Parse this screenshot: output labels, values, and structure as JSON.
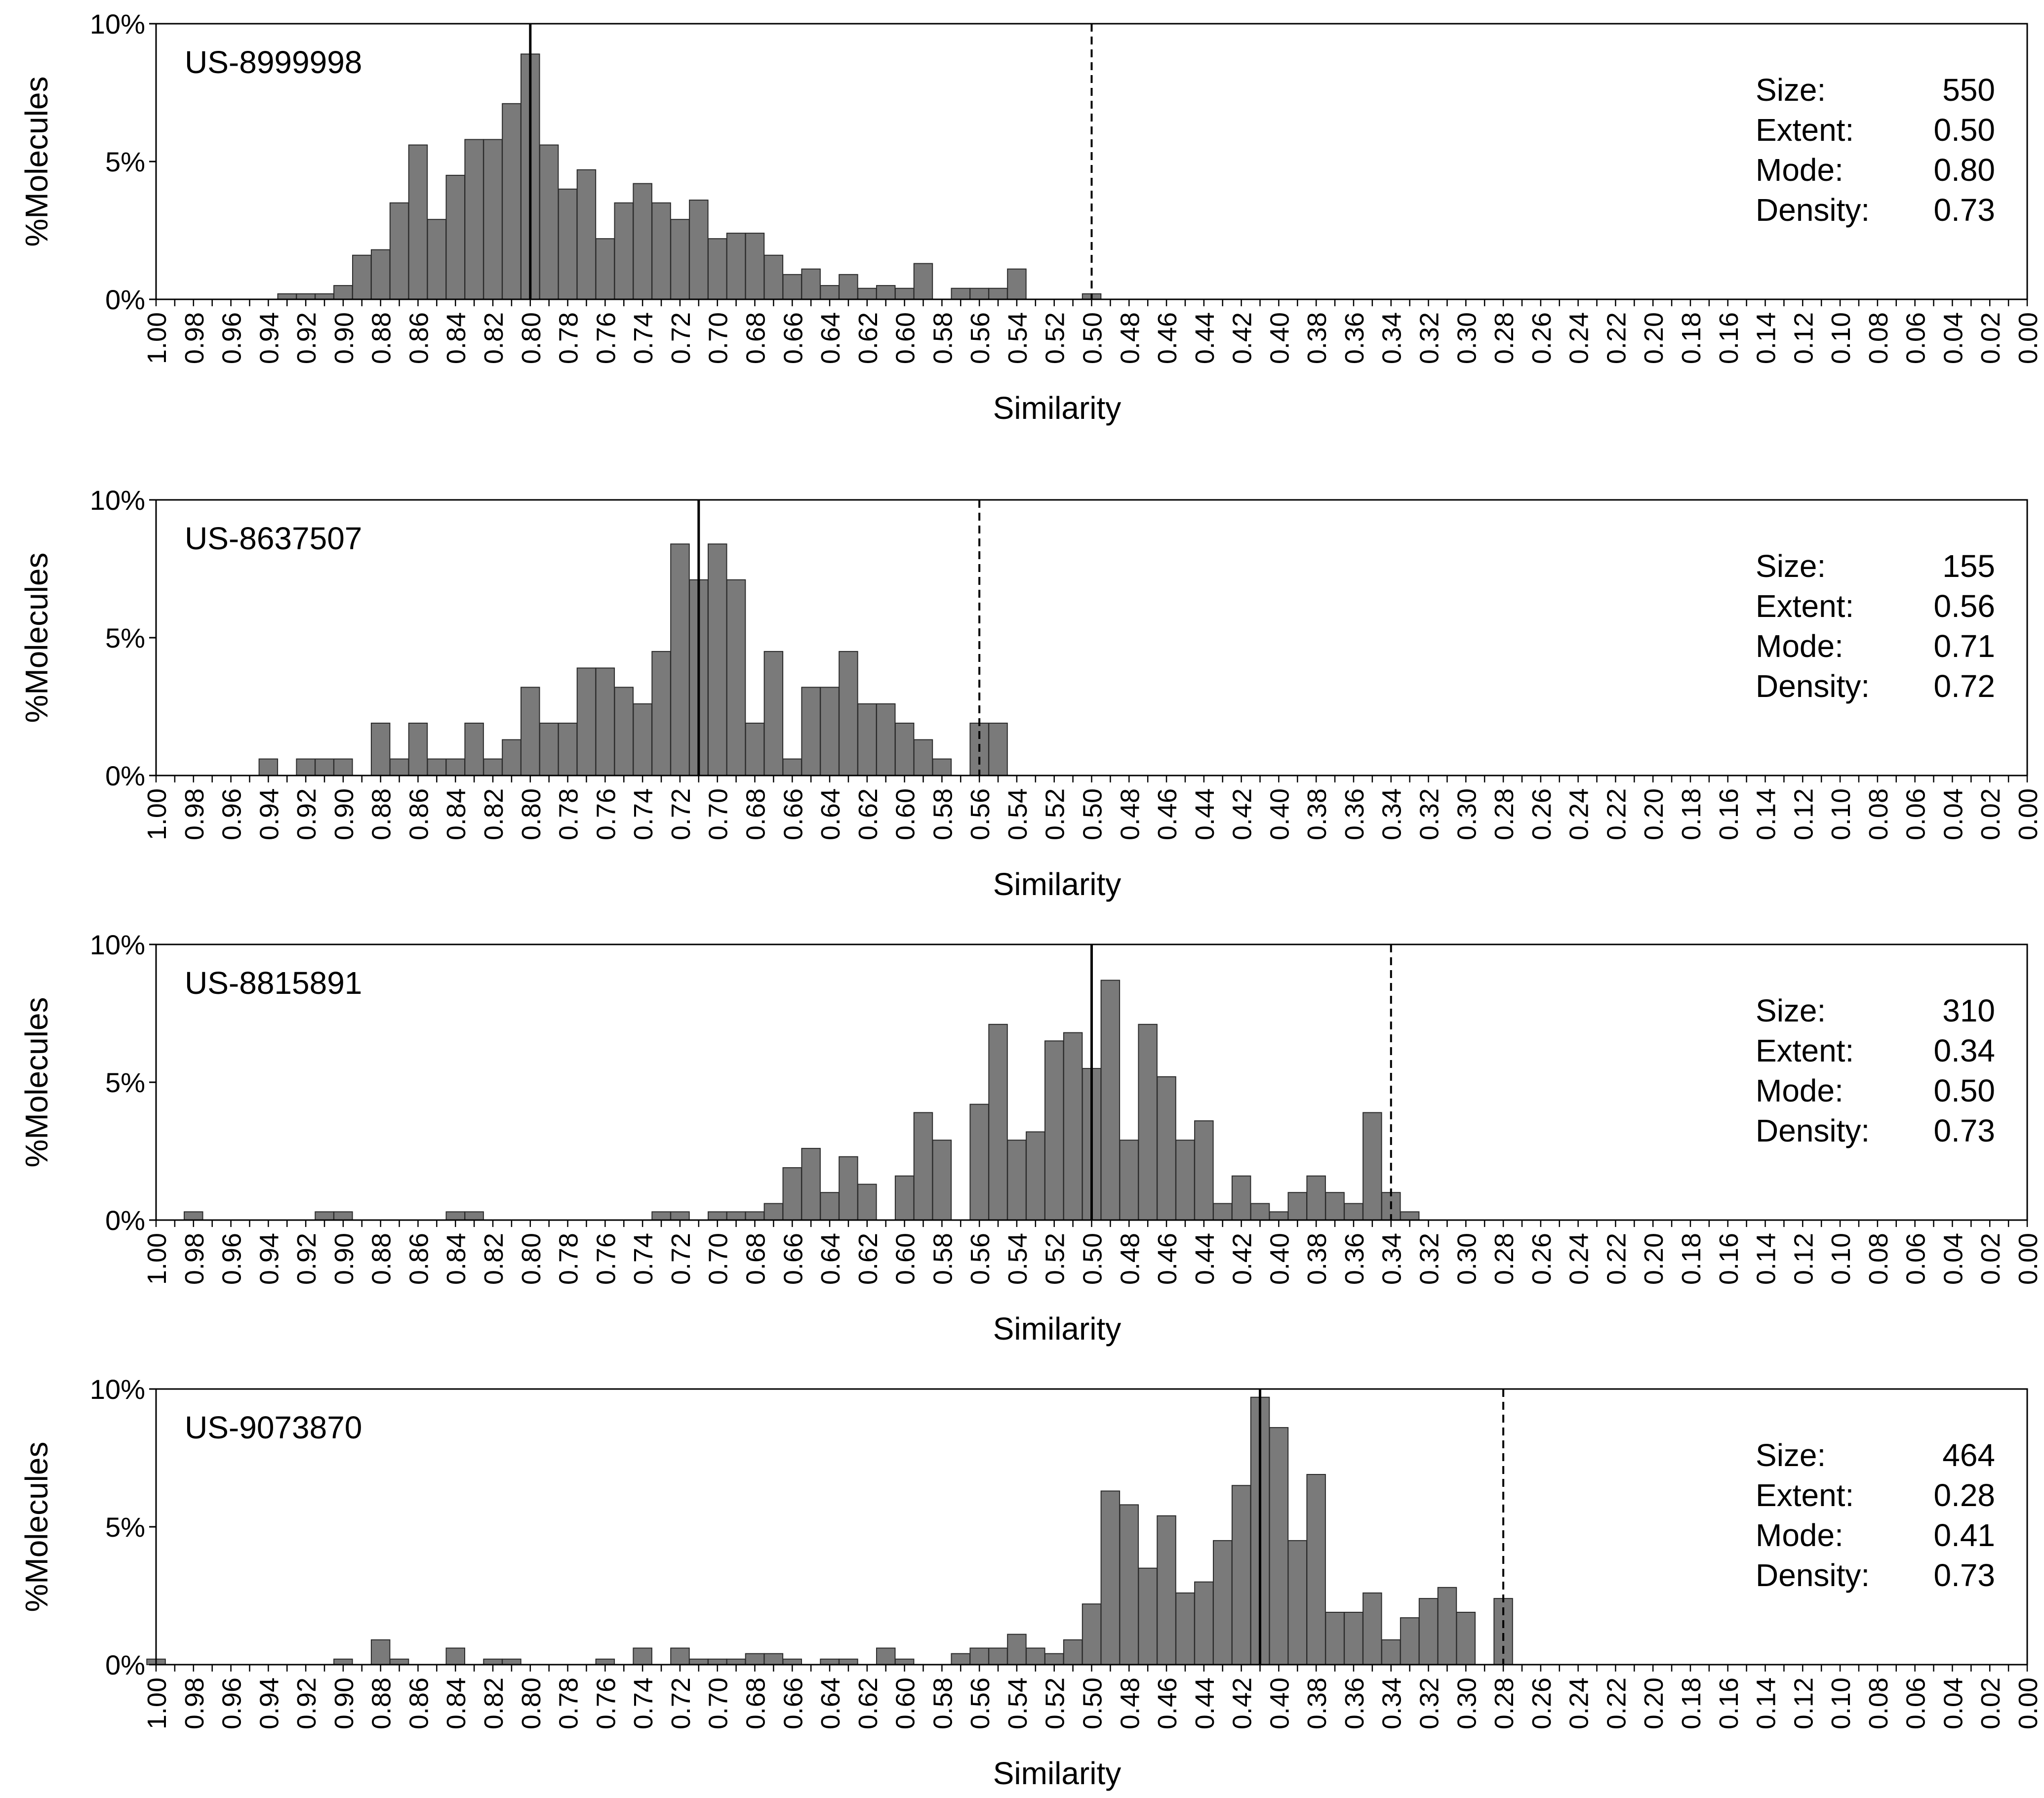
{
  "chart_data": [
    {
      "type": "bar",
      "label": "US-8999998",
      "xlabel": "Similarity",
      "ylabel": "%Molecules",
      "ylim": [
        0,
        10
      ],
      "yticks": [
        "0%",
        "5%",
        "10%"
      ],
      "xlim": [
        1.0,
        0.0
      ],
      "bin_width": 0.01,
      "mode_line": 0.8,
      "extent_line": 0.5,
      "stats": [
        {
          "label": "Size:",
          "value": "550"
        },
        {
          "label": "Extent:",
          "value": "0.50"
        },
        {
          "label": "Mode:",
          "value": "0.80"
        },
        {
          "label": "Density:",
          "value": "0.73"
        }
      ],
      "bins": [
        {
          "x": 0.93,
          "y": 0.2
        },
        {
          "x": 0.92,
          "y": 0.2
        },
        {
          "x": 0.91,
          "y": 0.2
        },
        {
          "x": 0.9,
          "y": 0.5
        },
        {
          "x": 0.89,
          "y": 1.6
        },
        {
          "x": 0.88,
          "y": 1.8
        },
        {
          "x": 0.87,
          "y": 3.5
        },
        {
          "x": 0.86,
          "y": 5.6
        },
        {
          "x": 0.85,
          "y": 2.9
        },
        {
          "x": 0.84,
          "y": 4.5
        },
        {
          "x": 0.83,
          "y": 5.8
        },
        {
          "x": 0.82,
          "y": 5.8
        },
        {
          "x": 0.81,
          "y": 7.1
        },
        {
          "x": 0.8,
          "y": 8.9
        },
        {
          "x": 0.79,
          "y": 5.6
        },
        {
          "x": 0.78,
          "y": 4.0
        },
        {
          "x": 0.77,
          "y": 4.7
        },
        {
          "x": 0.76,
          "y": 2.2
        },
        {
          "x": 0.75,
          "y": 3.5
        },
        {
          "x": 0.74,
          "y": 4.2
        },
        {
          "x": 0.73,
          "y": 3.5
        },
        {
          "x": 0.72,
          "y": 2.9
        },
        {
          "x": 0.71,
          "y": 3.6
        },
        {
          "x": 0.7,
          "y": 2.2
        },
        {
          "x": 0.69,
          "y": 2.4
        },
        {
          "x": 0.68,
          "y": 2.4
        },
        {
          "x": 0.67,
          "y": 1.6
        },
        {
          "x": 0.66,
          "y": 0.9
        },
        {
          "x": 0.65,
          "y": 1.1
        },
        {
          "x": 0.64,
          "y": 0.5
        },
        {
          "x": 0.63,
          "y": 0.9
        },
        {
          "x": 0.62,
          "y": 0.4
        },
        {
          "x": 0.61,
          "y": 0.5
        },
        {
          "x": 0.6,
          "y": 0.4
        },
        {
          "x": 0.59,
          "y": 1.3
        },
        {
          "x": 0.57,
          "y": 0.4
        },
        {
          "x": 0.56,
          "y": 0.4
        },
        {
          "x": 0.55,
          "y": 0.4
        },
        {
          "x": 0.54,
          "y": 1.1
        },
        {
          "x": 0.5,
          "y": 0.2
        }
      ]
    },
    {
      "type": "bar",
      "label": "US-8637507",
      "xlabel": "Similarity",
      "ylabel": "%Molecules",
      "ylim": [
        0,
        10
      ],
      "yticks": [
        "0%",
        "5%",
        "10%"
      ],
      "xlim": [
        1.0,
        0.0
      ],
      "bin_width": 0.01,
      "mode_line": 0.71,
      "extent_line": 0.56,
      "stats": [
        {
          "label": "Size:",
          "value": "155"
        },
        {
          "label": "Extent:",
          "value": "0.56"
        },
        {
          "label": "Mode:",
          "value": "0.71"
        },
        {
          "label": "Density:",
          "value": "0.72"
        }
      ],
      "bins": [
        {
          "x": 0.94,
          "y": 0.6
        },
        {
          "x": 0.92,
          "y": 0.6
        },
        {
          "x": 0.91,
          "y": 0.6
        },
        {
          "x": 0.9,
          "y": 0.6
        },
        {
          "x": 0.88,
          "y": 1.9
        },
        {
          "x": 0.87,
          "y": 0.6
        },
        {
          "x": 0.86,
          "y": 1.9
        },
        {
          "x": 0.85,
          "y": 0.6
        },
        {
          "x": 0.84,
          "y": 0.6
        },
        {
          "x": 0.83,
          "y": 1.9
        },
        {
          "x": 0.82,
          "y": 0.6
        },
        {
          "x": 0.81,
          "y": 1.3
        },
        {
          "x": 0.8,
          "y": 3.2
        },
        {
          "x": 0.79,
          "y": 1.9
        },
        {
          "x": 0.78,
          "y": 1.9
        },
        {
          "x": 0.77,
          "y": 3.9
        },
        {
          "x": 0.76,
          "y": 3.9
        },
        {
          "x": 0.75,
          "y": 3.2
        },
        {
          "x": 0.74,
          "y": 2.6
        },
        {
          "x": 0.73,
          "y": 4.5
        },
        {
          "x": 0.72,
          "y": 8.4
        },
        {
          "x": 0.71,
          "y": 7.1
        },
        {
          "x": 0.7,
          "y": 8.4
        },
        {
          "x": 0.69,
          "y": 7.1
        },
        {
          "x": 0.68,
          "y": 1.9
        },
        {
          "x": 0.67,
          "y": 4.5
        },
        {
          "x": 0.66,
          "y": 0.6
        },
        {
          "x": 0.65,
          "y": 3.2
        },
        {
          "x": 0.64,
          "y": 3.2
        },
        {
          "x": 0.63,
          "y": 4.5
        },
        {
          "x": 0.62,
          "y": 2.6
        },
        {
          "x": 0.61,
          "y": 2.6
        },
        {
          "x": 0.6,
          "y": 1.9
        },
        {
          "x": 0.59,
          "y": 1.3
        },
        {
          "x": 0.58,
          "y": 0.6
        },
        {
          "x": 0.56,
          "y": 1.9
        },
        {
          "x": 0.55,
          "y": 1.9
        }
      ]
    },
    {
      "type": "bar",
      "label": "US-8815891",
      "xlabel": "Similarity",
      "ylabel": "%Molecules",
      "ylim": [
        0,
        10
      ],
      "yticks": [
        "0%",
        "5%",
        "10%"
      ],
      "xlim": [
        1.0,
        0.0
      ],
      "bin_width": 0.01,
      "mode_line": 0.5,
      "extent_line": 0.34,
      "stats": [
        {
          "label": "Size:",
          "value": "310"
        },
        {
          "label": "Extent:",
          "value": "0.34"
        },
        {
          "label": "Mode:",
          "value": "0.50"
        },
        {
          "label": "Density:",
          "value": "0.73"
        }
      ],
      "bins": [
        {
          "x": 0.98,
          "y": 0.3
        },
        {
          "x": 0.91,
          "y": 0.3
        },
        {
          "x": 0.9,
          "y": 0.3
        },
        {
          "x": 0.84,
          "y": 0.3
        },
        {
          "x": 0.83,
          "y": 0.3
        },
        {
          "x": 0.73,
          "y": 0.3
        },
        {
          "x": 0.72,
          "y": 0.3
        },
        {
          "x": 0.7,
          "y": 0.3
        },
        {
          "x": 0.69,
          "y": 0.3
        },
        {
          "x": 0.68,
          "y": 0.3
        },
        {
          "x": 0.67,
          "y": 0.6
        },
        {
          "x": 0.66,
          "y": 1.9
        },
        {
          "x": 0.65,
          "y": 2.6
        },
        {
          "x": 0.64,
          "y": 1.0
        },
        {
          "x": 0.63,
          "y": 2.3
        },
        {
          "x": 0.62,
          "y": 1.3
        },
        {
          "x": 0.6,
          "y": 1.6
        },
        {
          "x": 0.59,
          "y": 3.9
        },
        {
          "x": 0.58,
          "y": 2.9
        },
        {
          "x": 0.56,
          "y": 4.2
        },
        {
          "x": 0.55,
          "y": 7.1
        },
        {
          "x": 0.54,
          "y": 2.9
        },
        {
          "x": 0.53,
          "y": 3.2
        },
        {
          "x": 0.52,
          "y": 6.5
        },
        {
          "x": 0.51,
          "y": 6.8
        },
        {
          "x": 0.5,
          "y": 5.5
        },
        {
          "x": 0.49,
          "y": 8.7
        },
        {
          "x": 0.48,
          "y": 2.9
        },
        {
          "x": 0.47,
          "y": 7.1
        },
        {
          "x": 0.46,
          "y": 5.2
        },
        {
          "x": 0.45,
          "y": 2.9
        },
        {
          "x": 0.44,
          "y": 3.6
        },
        {
          "x": 0.43,
          "y": 0.6
        },
        {
          "x": 0.42,
          "y": 1.6
        },
        {
          "x": 0.41,
          "y": 0.6
        },
        {
          "x": 0.4,
          "y": 0.3
        },
        {
          "x": 0.39,
          "y": 1.0
        },
        {
          "x": 0.38,
          "y": 1.6
        },
        {
          "x": 0.37,
          "y": 1.0
        },
        {
          "x": 0.36,
          "y": 0.6
        },
        {
          "x": 0.35,
          "y": 3.9
        },
        {
          "x": 0.34,
          "y": 1.0
        },
        {
          "x": 0.33,
          "y": 0.3
        }
      ]
    },
    {
      "type": "bar",
      "label": "US-9073870",
      "xlabel": "Similarity",
      "ylabel": "%Molecules",
      "ylim": [
        0,
        10
      ],
      "yticks": [
        "0%",
        "5%",
        "10%"
      ],
      "xlim": [
        1.0,
        0.0
      ],
      "bin_width": 0.01,
      "mode_line": 0.41,
      "extent_line": 0.28,
      "stats": [
        {
          "label": "Size:",
          "value": "464"
        },
        {
          "label": "Extent:",
          "value": "0.28"
        },
        {
          "label": "Mode:",
          "value": "0.41"
        },
        {
          "label": "Density:",
          "value": "0.73"
        }
      ],
      "bins": [
        {
          "x": 1.0,
          "y": 0.2
        },
        {
          "x": 0.9,
          "y": 0.2
        },
        {
          "x": 0.88,
          "y": 0.9
        },
        {
          "x": 0.87,
          "y": 0.2
        },
        {
          "x": 0.84,
          "y": 0.6
        },
        {
          "x": 0.82,
          "y": 0.2
        },
        {
          "x": 0.81,
          "y": 0.2
        },
        {
          "x": 0.76,
          "y": 0.2
        },
        {
          "x": 0.74,
          "y": 0.6
        },
        {
          "x": 0.72,
          "y": 0.6
        },
        {
          "x": 0.71,
          "y": 0.2
        },
        {
          "x": 0.7,
          "y": 0.2
        },
        {
          "x": 0.69,
          "y": 0.2
        },
        {
          "x": 0.68,
          "y": 0.4
        },
        {
          "x": 0.67,
          "y": 0.4
        },
        {
          "x": 0.66,
          "y": 0.2
        },
        {
          "x": 0.64,
          "y": 0.2
        },
        {
          "x": 0.63,
          "y": 0.2
        },
        {
          "x": 0.61,
          "y": 0.6
        },
        {
          "x": 0.6,
          "y": 0.2
        },
        {
          "x": 0.57,
          "y": 0.4
        },
        {
          "x": 0.56,
          "y": 0.6
        },
        {
          "x": 0.55,
          "y": 0.6
        },
        {
          "x": 0.54,
          "y": 1.1
        },
        {
          "x": 0.53,
          "y": 0.6
        },
        {
          "x": 0.52,
          "y": 0.4
        },
        {
          "x": 0.51,
          "y": 0.9
        },
        {
          "x": 0.5,
          "y": 2.2
        },
        {
          "x": 0.49,
          "y": 6.3
        },
        {
          "x": 0.48,
          "y": 5.8
        },
        {
          "x": 0.47,
          "y": 3.5
        },
        {
          "x": 0.46,
          "y": 5.4
        },
        {
          "x": 0.45,
          "y": 2.6
        },
        {
          "x": 0.44,
          "y": 3.0
        },
        {
          "x": 0.43,
          "y": 4.5
        },
        {
          "x": 0.42,
          "y": 6.5
        },
        {
          "x": 0.41,
          "y": 9.7
        },
        {
          "x": 0.4,
          "y": 8.6
        },
        {
          "x": 0.39,
          "y": 4.5
        },
        {
          "x": 0.38,
          "y": 6.9
        },
        {
          "x": 0.37,
          "y": 1.9
        },
        {
          "x": 0.36,
          "y": 1.9
        },
        {
          "x": 0.35,
          "y": 2.6
        },
        {
          "x": 0.34,
          "y": 0.9
        },
        {
          "x": 0.33,
          "y": 1.7
        },
        {
          "x": 0.32,
          "y": 2.4
        },
        {
          "x": 0.31,
          "y": 2.8
        },
        {
          "x": 0.3,
          "y": 1.9
        },
        {
          "x": 0.28,
          "y": 2.4
        }
      ]
    }
  ]
}
